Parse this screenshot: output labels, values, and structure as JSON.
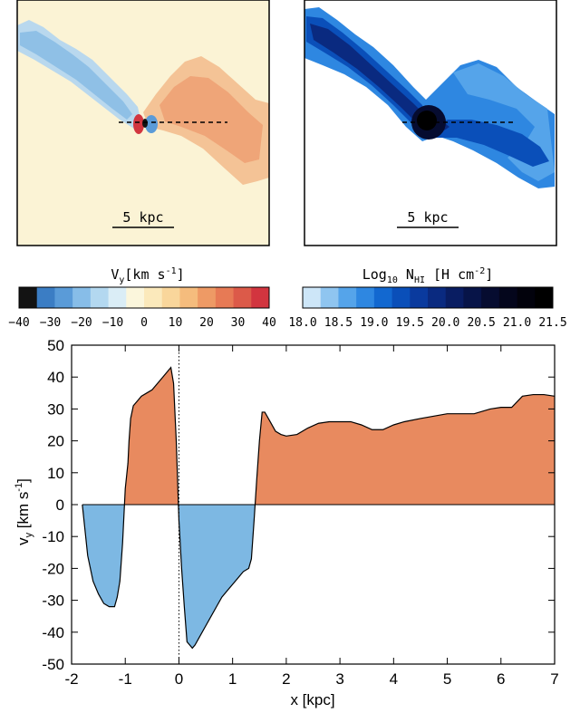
{
  "panels": {
    "left": {
      "scale_label": "5 kpc",
      "background": "#fbf3d5"
    },
    "right": {
      "scale_label": "5 kpc",
      "background": "#ffffff"
    }
  },
  "colorbars": {
    "velocity": {
      "label_main": "V",
      "label_sub": "y",
      "label_unit": "[km s",
      "label_sup": "-1",
      "label_close": "]",
      "ticks": [
        "−40",
        "−30",
        "−20",
        "−10",
        "0",
        "10",
        "20",
        "30",
        "40"
      ],
      "colors": [
        "#131313",
        "#3b7dc4",
        "#5a9bd8",
        "#87bde8",
        "#b3d8f0",
        "#daedf6",
        "#fbf6dc",
        "#fbe9bb",
        "#f9d69b",
        "#f5bc7d",
        "#ee9a65",
        "#e77a55",
        "#dc5a49",
        "#d2353f"
      ]
    },
    "column_density": {
      "label_main": "Log",
      "label_sub1": "10",
      "label_mid": " N",
      "label_sub2": "HI",
      "label_unit": " [H cm",
      "label_sup": "-2",
      "label_close": "]",
      "ticks": [
        "18.0",
        "18.5",
        "19.0",
        "19.5",
        "20.0",
        "20.5",
        "21.0",
        "21.5"
      ],
      "colors": [
        "#cde6f8",
        "#8fc5f0",
        "#55a4ea",
        "#2e87e1",
        "#1268d0",
        "#0a4fb9",
        "#0a3a9e",
        "#0a2a80",
        "#091d62",
        "#071448",
        "#060c30",
        "#04061c",
        "#02020c",
        "#000000"
      ]
    }
  },
  "chart_data": {
    "type": "area",
    "title": "",
    "xlabel": "x [kpc]",
    "ylabel_main": "v",
    "ylabel_sub": "y",
    "ylabel_unit": " [km s",
    "ylabel_sup": "-1",
    "ylabel_close": "]",
    "xlim": [
      -2,
      7
    ],
    "ylim": [
      -50,
      50
    ],
    "xticks": [
      "-2",
      "-1",
      "0",
      "1",
      "2",
      "3",
      "4",
      "5",
      "6",
      "7"
    ],
    "yticks": [
      "-50",
      "-40",
      "-30",
      "-20",
      "-10",
      "0",
      "10",
      "20",
      "30",
      "40",
      "50"
    ],
    "positive_color": "#e88a5f",
    "negative_color": "#7db8e3",
    "zero_marker_x": 0,
    "x": [
      -1.8,
      -1.75,
      -1.7,
      -1.6,
      -1.5,
      -1.4,
      -1.3,
      -1.2,
      -1.15,
      -1.1,
      -1.05,
      -1.0,
      -0.95,
      -0.93,
      -0.9,
      -0.85,
      -0.8,
      -0.75,
      -0.7,
      -0.6,
      -0.5,
      -0.4,
      -0.3,
      -0.2,
      -0.15,
      -0.1,
      -0.05,
      0.0,
      0.05,
      0.1,
      0.15,
      0.2,
      0.25,
      0.3,
      0.4,
      0.5,
      0.6,
      0.7,
      0.8,
      0.9,
      1.0,
      1.1,
      1.2,
      1.3,
      1.35,
      1.4,
      1.45,
      1.5,
      1.55,
      1.6,
      1.7,
      1.8,
      1.9,
      2.0,
      2.2,
      2.4,
      2.6,
      2.8,
      3.0,
      3.2,
      3.4,
      3.6,
      3.8,
      4.0,
      4.2,
      4.5,
      5.0,
      5.5,
      5.8,
      6.0,
      6.2,
      6.4,
      6.6,
      6.8,
      7.0
    ],
    "y": [
      0,
      -8,
      -16,
      -24,
      -28,
      -31,
      -32,
      -32,
      -29,
      -24,
      -12,
      5,
      13,
      20,
      27,
      31,
      32,
      33,
      34,
      35,
      36,
      38,
      40,
      42,
      43,
      38,
      20,
      -5,
      -20,
      -32,
      -43,
      -44,
      -45,
      -44,
      -41,
      -38,
      -35,
      -32,
      -29,
      -27,
      -25,
      -23,
      -21,
      -20,
      -17,
      -5,
      8,
      20,
      29,
      29,
      26,
      23,
      22,
      21.5,
      22,
      24,
      25.5,
      26,
      26,
      26,
      25,
      23.5,
      23.5,
      25,
      26,
      27,
      28.5,
      28.5,
      30,
      30.5,
      30.5,
      34,
      34.5,
      34.5,
      34
    ]
  }
}
